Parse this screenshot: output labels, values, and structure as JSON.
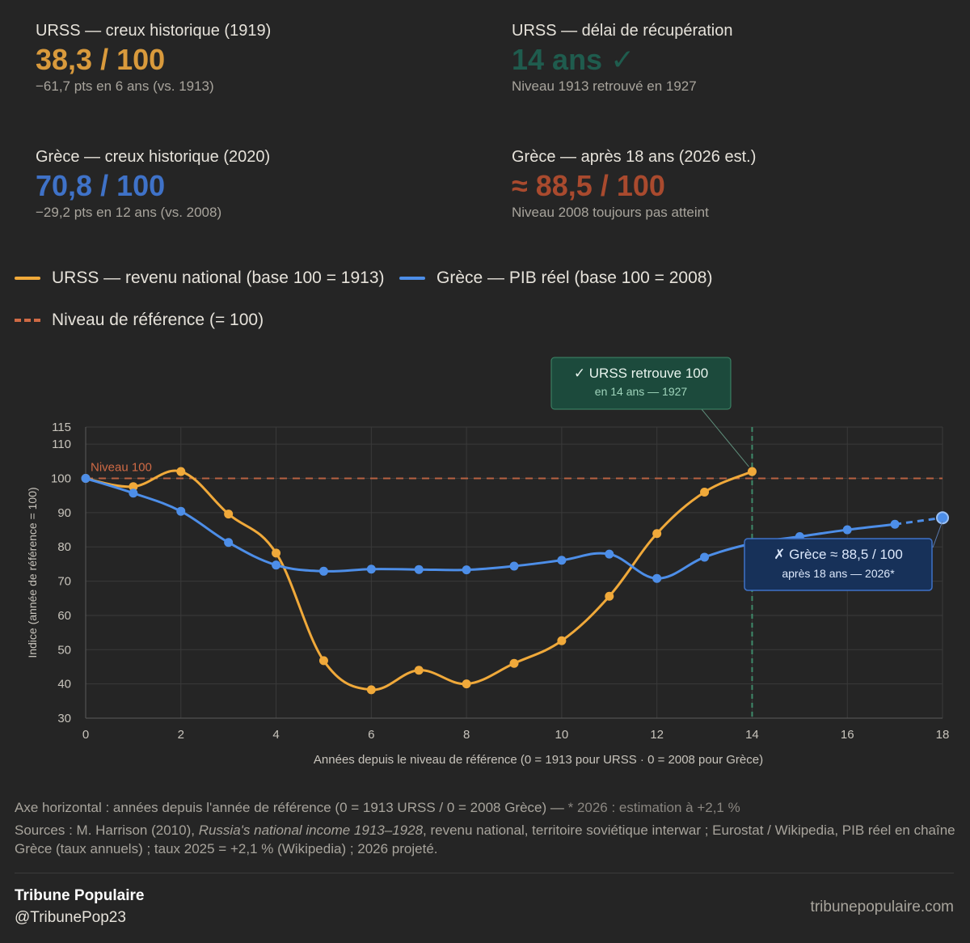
{
  "stats": [
    {
      "label": "URSS — creux historique (1919)",
      "value": "38,3 / 100",
      "sub": "−61,7 pts en 6 ans (vs. 1913)",
      "color": "#d99a3c"
    },
    {
      "label": "URSS — délai de récupération",
      "value": "14 ans ✓",
      "sub": "Niveau 1913 retrouvé en 1927",
      "color": "#1f5c4e"
    },
    {
      "label": "Grèce — creux historique (2020)",
      "value": "70,8 / 100",
      "sub": "−29,2 pts en 12 ans (vs. 2008)",
      "color": "#3f72c8"
    },
    {
      "label": "Grèce — après 18 ans (2026 est.)",
      "value": "≈ 88,5 / 100",
      "sub": "Niveau 2008 toujours pas atteint",
      "color": "#a94a2e"
    }
  ],
  "legend": {
    "ussr": "URSS — revenu national (base 100 = 1913)",
    "greece": "Grèce — PIB réel (base 100 = 2008)",
    "reference": "Niveau de référence (= 100)"
  },
  "colors": {
    "ussr": "#f0a93a",
    "greece": "#4d8ee8",
    "reference": "#cf6a45",
    "recovery": "#3f8a6a"
  },
  "chart_data": {
    "type": "line",
    "xlabel": "Années depuis le niveau de référence  (0 = 1913 pour URSS · 0 = 2008 pour Grèce)",
    "ylabel": "Indice (année de référence = 100)",
    "xlim": [
      0,
      18
    ],
    "ylim": [
      30,
      115
    ],
    "xticks": [
      0,
      2,
      4,
      6,
      8,
      10,
      12,
      14,
      16,
      18
    ],
    "yticks": [
      30,
      40,
      50,
      60,
      70,
      80,
      90,
      100,
      110,
      115
    ],
    "reference_line": {
      "y": 100,
      "label": "Niveau 100"
    },
    "recovery_marker": {
      "x": 14
    },
    "series": [
      {
        "name": "URSS — revenu national (base 100 = 1913)",
        "key": "ussr",
        "x": [
          0,
          1,
          2,
          3,
          4,
          5,
          6,
          7,
          8,
          9,
          10,
          11,
          12,
          13,
          14
        ],
        "y": [
          100,
          97.6,
          102,
          89.6,
          78.2,
          46.8,
          38.3,
          44,
          40,
          46,
          52.6,
          65.6,
          83.9,
          96,
          102
        ]
      },
      {
        "name": "Grèce — PIB réel (base 100 = 2008)",
        "key": "greece",
        "x": [
          0,
          1,
          2,
          3,
          4,
          5,
          6,
          7,
          8,
          9,
          10,
          11,
          12,
          13,
          14,
          15,
          16,
          17
        ],
        "y": [
          100,
          95.7,
          90.4,
          81.3,
          74.7,
          72.9,
          73.5,
          73.4,
          73.3,
          74.4,
          76.1,
          77.9,
          70.8,
          77,
          81,
          83,
          85,
          86.6
        ],
        "projection": {
          "x": [
            17,
            18
          ],
          "y": [
            86.6,
            88.5
          ]
        }
      }
    ],
    "annotations": [
      {
        "title": "✓ URSS retrouve 100",
        "sub": "en 14 ans — 1927",
        "x": 14,
        "y": 102
      },
      {
        "title": "✗ Grèce ≈ 88,5 / 100",
        "sub": "après 18 ans — 2026*",
        "x": 18,
        "y": 88.5
      }
    ]
  },
  "footer": {
    "axis_note": "Axe horizontal : années depuis l'année de référence (0 = 1913 URSS / 0 = 2008 Grèce) — ",
    "axis_note_est": "* 2026 : estimation à +2,1 %",
    "sources_pre": "Sources : M. Harrison (2010), ",
    "sources_title": "Russia's national income 1913–1928",
    "sources_post": ", revenu national, territoire soviétique interwar ; Eurostat / Wikipedia, PIB réel en chaîne Grèce (taux annuels) ; taux 2025 = +2,1 % (Wikipedia) ; 2026 projeté."
  },
  "brand": {
    "name": "Tribune Populaire",
    "handle": "@TribunePop23",
    "site": "tribunepopulaire.com"
  }
}
